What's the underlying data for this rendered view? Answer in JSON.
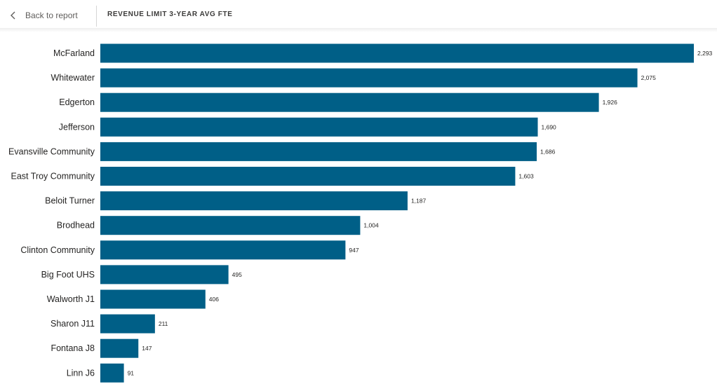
{
  "header": {
    "back_label": "Back to report",
    "title": "REVENUE LIMIT 3-YEAR AVG FTE"
  },
  "colors": {
    "bar": "#005f87",
    "label": "#252423",
    "data_label": "#252423"
  },
  "chart_data": {
    "type": "bar",
    "orientation": "horizontal",
    "title": "REVENUE LIMIT 3-YEAR AVG FTE",
    "categories": [
      "McFarland",
      "Whitewater",
      "Edgerton",
      "Jefferson",
      "Evansville Community",
      "East Troy Community",
      "Beloit Turner",
      "Brodhead",
      "Clinton Community",
      "Big Foot UHS",
      "Walworth J1",
      "Sharon J11",
      "Fontana J8",
      "Linn J6"
    ],
    "values": [
      2293,
      2075,
      1926,
      1690,
      1686,
      1603,
      1187,
      1004,
      947,
      495,
      406,
      211,
      147,
      91
    ],
    "data_labels": [
      "2,293",
      "2,075",
      "1,926",
      "1,690",
      "1,686",
      "1,603",
      "1,187",
      "1,004",
      "947",
      "495",
      "406",
      "211",
      "147",
      "91"
    ],
    "xlim": [
      0,
      2293
    ],
    "grid": false,
    "legend": "none"
  }
}
